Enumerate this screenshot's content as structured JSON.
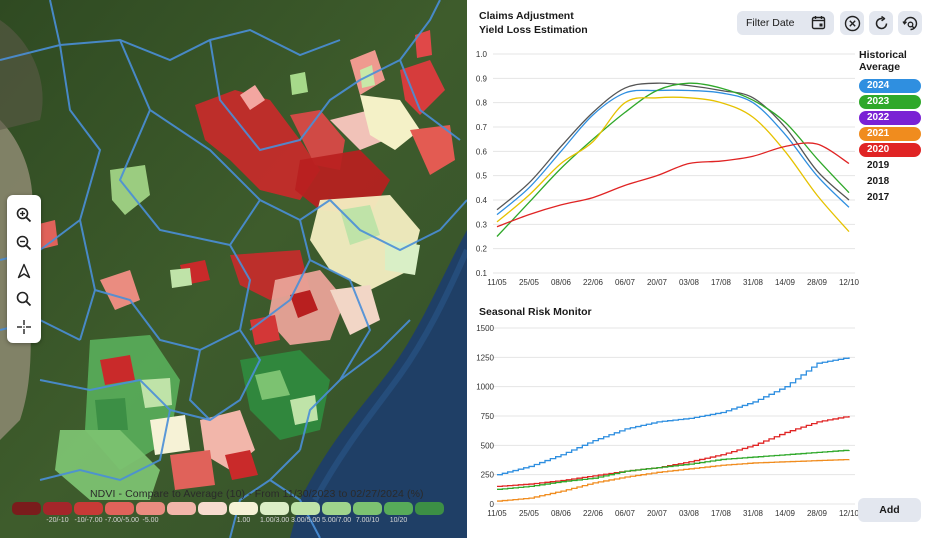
{
  "map": {
    "legend_title": "NDVI - Compare to Average (10) - From 11/30/2023 to 02/27/2024 (%)",
    "legend_colors": [
      "#7a1c1c",
      "#a4262a",
      "#c73a36",
      "#e0625a",
      "#ea8c80",
      "#f2b6aa",
      "#f7dccf",
      "#f6f2d6",
      "#dcefc6",
      "#bfe3a8",
      "#9fd48c",
      "#7cc271",
      "#57ab59",
      "#3c8f45"
    ],
    "legend_labels": [
      "",
      "-20/-10",
      "-10/-7.00",
      "-7.00/-5.00",
      "-5.00",
      "",
      "",
      "1.00",
      "1.00/3.00",
      "3.00/5.00",
      "5.00/7.00",
      "7.00/10",
      "10/20",
      ""
    ],
    "tools": [
      {
        "name": "zoom-in-icon"
      },
      {
        "name": "zoom-out-icon"
      },
      {
        "name": "navigate-icon"
      },
      {
        "name": "search-icon"
      },
      {
        "name": "crosshair-icon"
      }
    ]
  },
  "panel": {
    "title_line1": "Claims Adjustment",
    "title_line2": "Yield Loss Estimation",
    "filter_label": "Filter Date",
    "historical_title_line1": "Historical",
    "historical_title_line2": "Average",
    "years": [
      {
        "label": "2024",
        "color": "#2f8fe0",
        "active": true
      },
      {
        "label": "2023",
        "color": "#2fa82a",
        "active": true
      },
      {
        "label": "2022",
        "color": "#7a22d4",
        "active": true
      },
      {
        "label": "2021",
        "color": "#f08c1e",
        "active": true
      },
      {
        "label": "2020",
        "color": "#e02424",
        "active": true
      },
      {
        "label": "2019",
        "color": "",
        "active": false
      },
      {
        "label": "2018",
        "color": "",
        "active": false
      },
      {
        "label": "2017",
        "color": "",
        "active": false
      }
    ],
    "seasonal_title": "Seasonal Risk Monitor",
    "add_label": "Add"
  },
  "chart_data": [
    {
      "type": "line",
      "title": "Yield Loss Estimation",
      "categories": [
        "11/05",
        "25/05",
        "08/06",
        "22/06",
        "06/07",
        "20/07",
        "03/08",
        "17/08",
        "31/08",
        "14/09",
        "28/09",
        "12/10"
      ],
      "ylim": [
        0.1,
        1.0
      ],
      "yticks": [
        0.1,
        0.2,
        0.3,
        0.4,
        0.5,
        0.6,
        0.7,
        0.8,
        0.9,
        1.0
      ],
      "series": [
        {
          "name": "gray",
          "color": "#555555",
          "values": [
            0.36,
            0.47,
            0.62,
            0.76,
            0.86,
            0.88,
            0.87,
            0.85,
            0.82,
            0.7,
            0.52,
            0.4
          ]
        },
        {
          "name": "2024",
          "color": "#2f8fe0",
          "values": [
            0.34,
            0.45,
            0.6,
            0.75,
            0.84,
            0.85,
            0.85,
            0.84,
            0.8,
            0.67,
            0.5,
            0.37
          ]
        },
        {
          "name": "2023",
          "color": "#2fa82a",
          "values": [
            0.25,
            0.39,
            0.53,
            0.65,
            0.76,
            0.85,
            0.88,
            0.86,
            0.81,
            0.72,
            0.57,
            0.43
          ]
        },
        {
          "name": "2021-yellow",
          "color": "#e6c200",
          "values": [
            0.31,
            0.42,
            0.55,
            0.64,
            0.8,
            0.82,
            0.82,
            0.8,
            0.74,
            0.6,
            0.42,
            0.27
          ]
        },
        {
          "name": "2020",
          "color": "#e02424",
          "values": [
            0.29,
            0.34,
            0.38,
            0.41,
            0.46,
            0.5,
            0.55,
            0.56,
            0.58,
            0.62,
            0.63,
            0.55
          ]
        }
      ]
    },
    {
      "type": "line",
      "title": "Seasonal Risk Monitor",
      "categories": [
        "11/05",
        "25/05",
        "08/06",
        "22/06",
        "06/07",
        "20/07",
        "03/08",
        "17/08",
        "31/08",
        "14/09",
        "28/09",
        "12/10"
      ],
      "ylim": [
        0,
        1500
      ],
      "yticks": [
        0,
        250,
        500,
        750,
        1000,
        1250,
        1500
      ],
      "series": [
        {
          "name": "2024",
          "color": "#2f8fe0",
          "values": [
            250,
            320,
            420,
            540,
            640,
            700,
            730,
            780,
            870,
            1000,
            1200,
            1250
          ]
        },
        {
          "name": "2020",
          "color": "#e02424",
          "values": [
            150,
            170,
            200,
            240,
            280,
            310,
            360,
            420,
            500,
            610,
            700,
            750
          ]
        },
        {
          "name": "2023",
          "color": "#2fa82a",
          "values": [
            125,
            150,
            190,
            220,
            280,
            310,
            340,
            380,
            400,
            420,
            440,
            460
          ]
        },
        {
          "name": "2021",
          "color": "#f08c1e",
          "values": [
            25,
            50,
            110,
            180,
            230,
            270,
            300,
            330,
            350,
            360,
            370,
            380
          ]
        }
      ]
    }
  ]
}
